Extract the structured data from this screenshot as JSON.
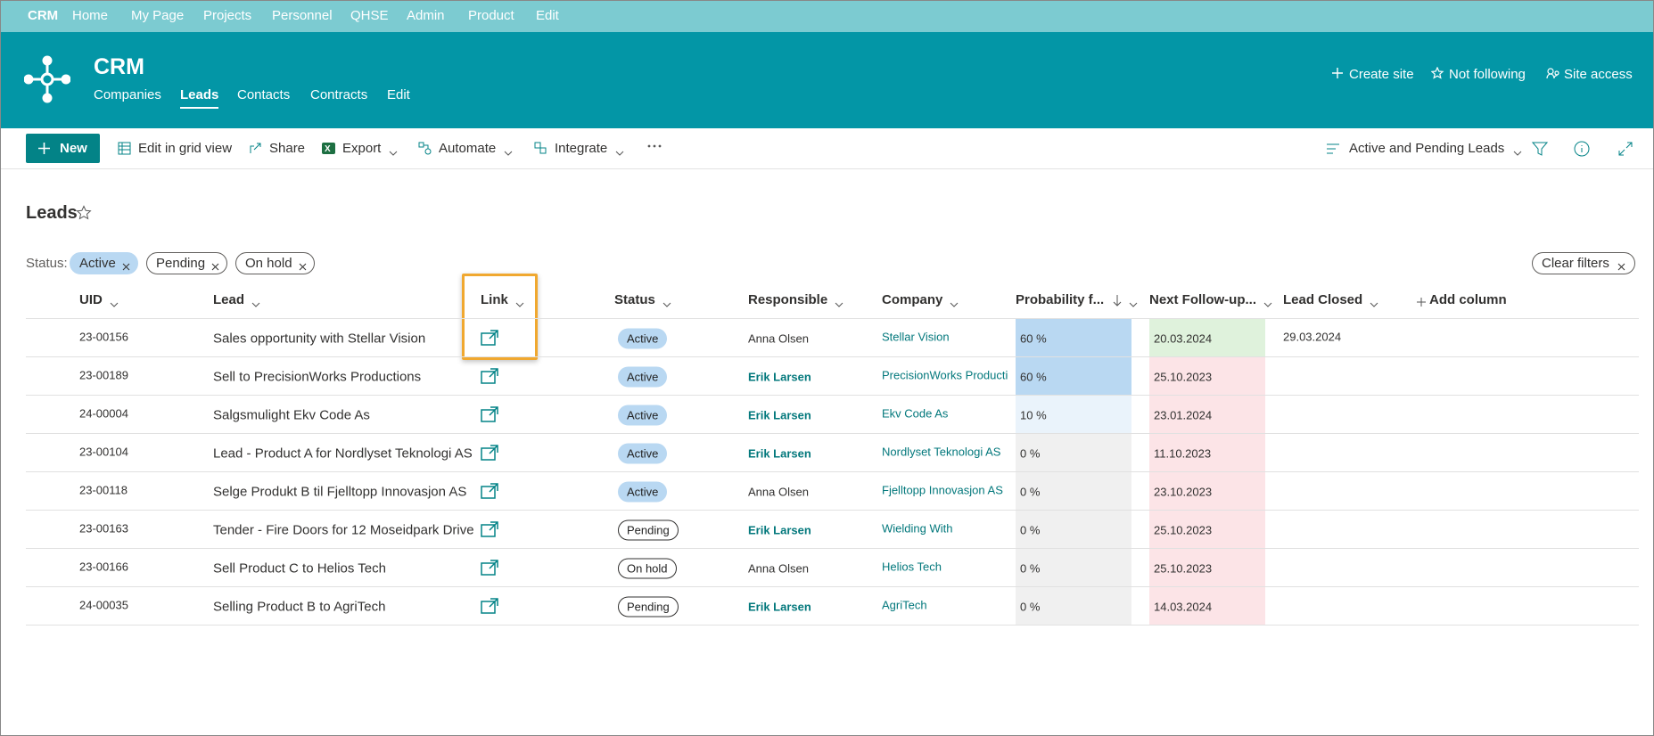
{
  "suite_bar": {
    "items": [
      "CRM",
      "Home",
      "My Page",
      "Projects",
      "Personnel",
      "QHSE",
      "Admin",
      "Product",
      "Edit"
    ]
  },
  "site": {
    "title": "CRM",
    "nav": [
      "Companies",
      "Leads",
      "Contacts",
      "Contracts",
      "Edit"
    ],
    "selected_nav": 1,
    "actions": [
      "Create site",
      "Not following",
      "Site access"
    ]
  },
  "command_bar": {
    "new": "New",
    "commands": [
      "Edit in grid view",
      "Share",
      "Export",
      "Automate",
      "Integrate"
    ],
    "view": "Active and Pending Leads"
  },
  "list": {
    "title": "Leads",
    "filter_label": "Status:",
    "filters": [
      "Active",
      "Pending",
      "On hold"
    ],
    "active_filter": 0,
    "clear": "Clear filters",
    "columns": [
      "UID",
      "Lead",
      "Link",
      "Status",
      "Responsible",
      "Company",
      "Probability f...",
      "Next Follow-up...",
      "Lead Closed"
    ],
    "add_column": "Add column",
    "rows": [
      {
        "uid": "23-00156",
        "lead": "Sales opportunity with Stellar Vision",
        "status": "Active",
        "status_color": "#b9d8f2",
        "responsible": "Anna Olsen",
        "responsible_link": false,
        "company": "Stellar Vision",
        "probability": "60 %",
        "probability_color": "#b9d8f2",
        "followup": "20.03.2024",
        "followup_color": "#dff2dc",
        "closed": "29.03.2024"
      },
      {
        "uid": "23-00189",
        "lead": "Sell to PrecisionWorks Productions",
        "status": "Active",
        "status_color": "#b9d8f2",
        "responsible": "Erik Larsen",
        "responsible_link": true,
        "company": "PrecisionWorks Productions",
        "probability": "60 %",
        "probability_color": "#b9d8f2",
        "followup": "25.10.2023",
        "followup_color": "#fce4e7",
        "closed": null
      },
      {
        "uid": "24-00004",
        "lead": "Salgsmulight Ekv Code As",
        "status": "Active",
        "status_color": "#b9d8f2",
        "responsible": "Erik Larsen",
        "responsible_link": true,
        "company": "Ekv Code As",
        "probability": "10 %",
        "probability_color": "#eaf3fb",
        "followup": "23.01.2024",
        "followup_color": "#fce4e7",
        "closed": null
      },
      {
        "uid": "23-00104",
        "lead": "Lead - Product A for Nordlyset Teknologi AS",
        "status": "Active",
        "status_color": "#b9d8f2",
        "responsible": "Erik Larsen",
        "responsible_link": true,
        "company": "Nordlyset Teknologi AS",
        "probability": "0 %",
        "probability_color": "#f0f0f0",
        "followup": "11.10.2023",
        "followup_color": "#fce4e7",
        "closed": null
      },
      {
        "uid": "23-00118",
        "lead": "Selge Produkt B til Fjelltopp Innovasjon AS",
        "status": "Active",
        "status_color": "#b9d8f2",
        "responsible": "Anna Olsen",
        "responsible_link": false,
        "company": "Fjelltopp Innovasjon AS",
        "probability": "0 %",
        "probability_color": "#f0f0f0",
        "followup": "23.10.2023",
        "followup_color": "#fce4e7",
        "closed": null
      },
      {
        "uid": "23-00163",
        "lead": "Tender - Fire Doors for 12 Moseidpark Drive",
        "status": "Pending",
        "status_color": null,
        "responsible": "Erik Larsen",
        "responsible_link": true,
        "company": "Wielding With",
        "probability": "0 %",
        "probability_color": "#f0f0f0",
        "followup": "25.10.2023",
        "followup_color": "#fce4e7",
        "closed": null
      },
      {
        "uid": "23-00166",
        "lead": "Sell Product C to Helios Tech",
        "status": "On hold",
        "status_color": null,
        "responsible": "Anna Olsen",
        "responsible_link": false,
        "company": "Helios Tech",
        "probability": "0 %",
        "probability_color": "#f0f0f0",
        "followup": "25.10.2023",
        "followup_color": "#fce4e7",
        "closed": null
      },
      {
        "uid": "24-00035",
        "lead": "Selling Product B to AgriTech",
        "status": "Pending",
        "status_color": null,
        "responsible": "Erik Larsen",
        "responsible_link": true,
        "company": "AgriTech",
        "probability": "0 %",
        "probability_color": "#f0f0f0",
        "followup": "14.03.2024",
        "followup_color": "#fce4e7",
        "closed": null
      }
    ]
  }
}
